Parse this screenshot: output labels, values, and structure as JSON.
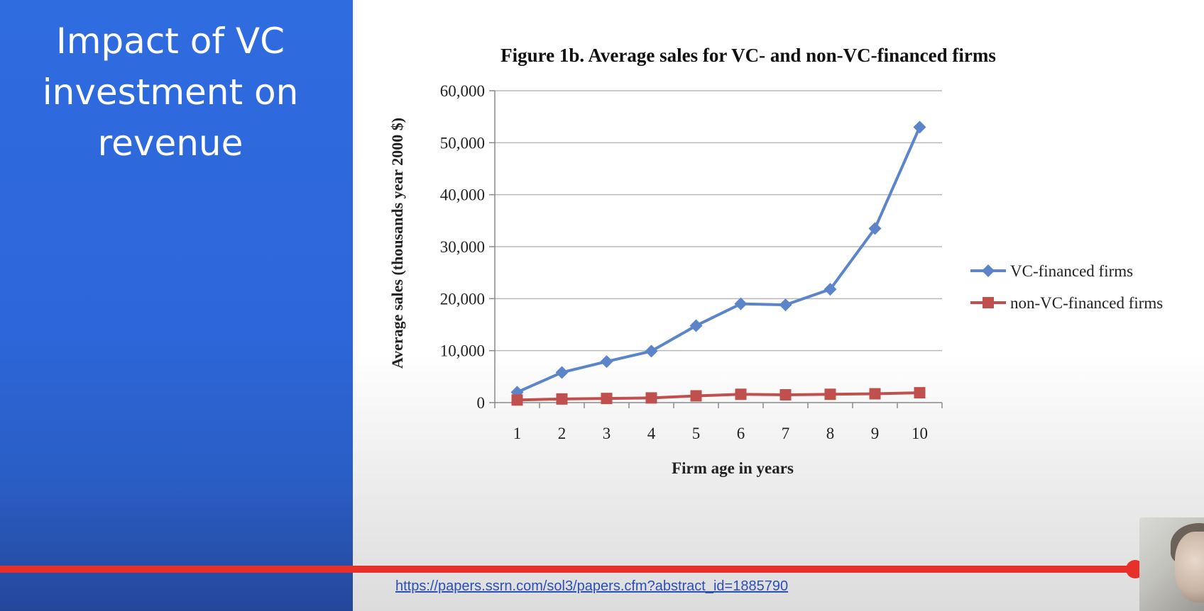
{
  "slide": {
    "title": "Impact of VC investment on revenue",
    "source_link": "https://papers.ssrn.com/sol3/papers.cfm?abstract_id=1885790"
  },
  "video": {
    "progress_fraction": 0.943
  },
  "colors": {
    "left_panel": "#2f6ce0",
    "series_vc": "#5b84c9",
    "series_nonvc": "#c0504d",
    "progress": "#e8302a",
    "link": "#2b4fb8"
  },
  "chart_data": {
    "type": "line",
    "title": "Figure 1b.  Average sales for VC- and non-VC-financed  firms",
    "xlabel": "Firm age in years",
    "ylabel": "Average sales (thousands year 2000 $)",
    "x": [
      "1",
      "2",
      "3",
      "4",
      "5",
      "6",
      "7",
      "8",
      "9",
      "10"
    ],
    "ylim": [
      0,
      60000
    ],
    "yticks": [
      0,
      10000,
      20000,
      30000,
      40000,
      50000,
      60000
    ],
    "ytick_labels": [
      "0",
      "10,000",
      "20,000",
      "30,000",
      "40,000",
      "50,000",
      "60,000"
    ],
    "grid": true,
    "legend_position": "right",
    "series": [
      {
        "name": "VC-financed firms",
        "marker": "diamond",
        "color": "#5b84c9",
        "values": [
          2000,
          5800,
          7900,
          9900,
          14800,
          19000,
          18800,
          21800,
          33500,
          53000
        ]
      },
      {
        "name": "non-VC-financed firms",
        "marker": "square",
        "color": "#c0504d",
        "values": [
          500,
          700,
          800,
          900,
          1300,
          1600,
          1500,
          1600,
          1700,
          1900
        ]
      }
    ]
  }
}
